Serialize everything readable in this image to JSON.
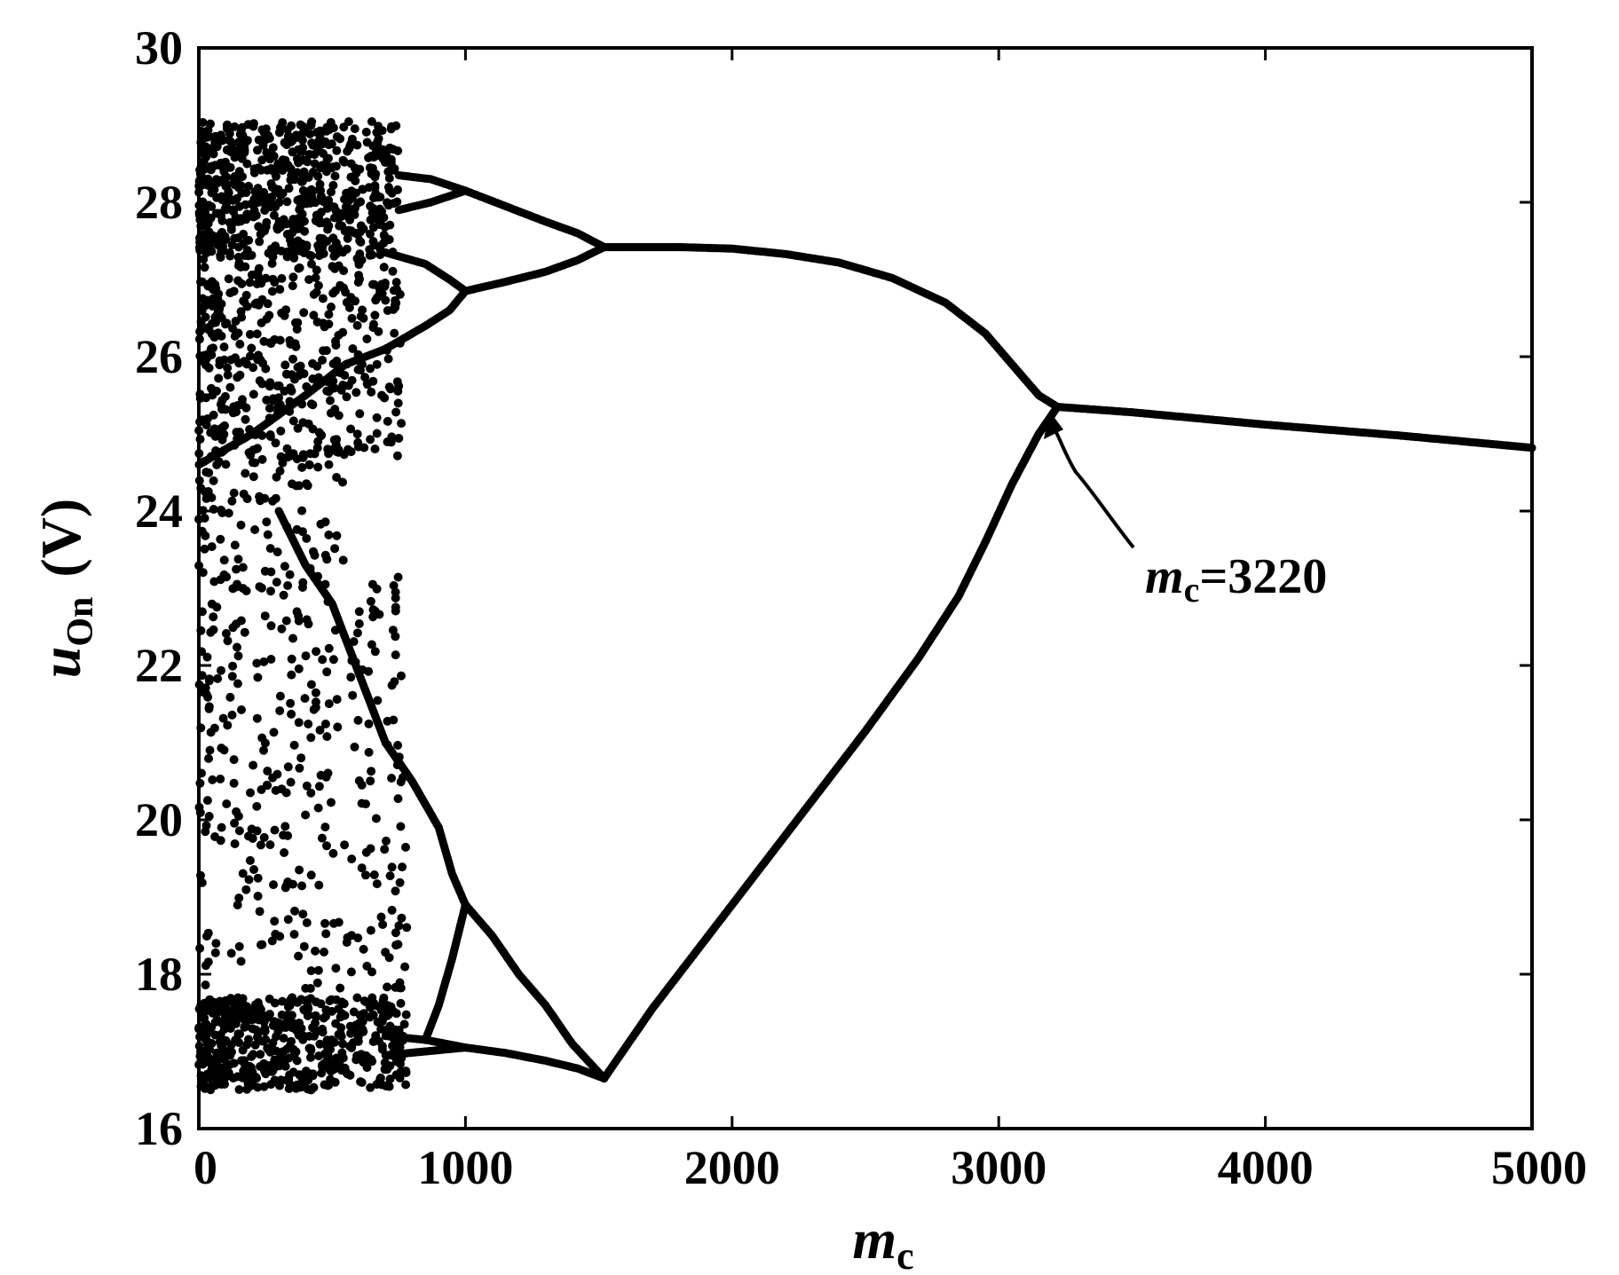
{
  "chart_data": {
    "type": "scatter",
    "title": "",
    "xlabel": {
      "main": "m",
      "sub": "c"
    },
    "ylabel": {
      "main": "u",
      "sub": "On",
      "unit": "(V)"
    },
    "xlim": [
      0,
      5000
    ],
    "ylim": [
      16,
      30
    ],
    "xticks": [
      0,
      1000,
      2000,
      3000,
      4000,
      5000
    ],
    "yticks": [
      16,
      18,
      20,
      22,
      24,
      26,
      28,
      30
    ],
    "xtick_labels": [
      "0",
      "1000",
      "2000",
      "3000",
      "4000",
      "5000"
    ],
    "ytick_labels": [
      "16",
      "18",
      "20",
      "22",
      "24",
      "26",
      "28",
      "30"
    ],
    "grid": false,
    "legend": "none",
    "marker_color": "#000000",
    "annotation": {
      "main": "m",
      "sub": "c",
      "rest": "=3220",
      "x": 3220,
      "y": 25.35
    },
    "branches": [
      {
        "name": "period-1",
        "points": [
          [
            3220,
            25.35
          ],
          [
            3500,
            25.28
          ],
          [
            4000,
            25.12
          ],
          [
            4500,
            24.98
          ],
          [
            5000,
            24.82
          ]
        ]
      },
      {
        "name": "period-2 upper",
        "points": [
          [
            1520,
            27.42
          ],
          [
            1800,
            27.42
          ],
          [
            2000,
            27.4
          ],
          [
            2200,
            27.33
          ],
          [
            2400,
            27.22
          ],
          [
            2600,
            27.02
          ],
          [
            2800,
            26.7
          ],
          [
            2950,
            26.3
          ],
          [
            3050,
            25.9
          ],
          [
            3150,
            25.5
          ],
          [
            3220,
            25.35
          ]
        ]
      },
      {
        "name": "period-2 lower",
        "points": [
          [
            1520,
            16.65
          ],
          [
            1700,
            17.55
          ],
          [
            1900,
            18.45
          ],
          [
            2100,
            19.35
          ],
          [
            2300,
            20.25
          ],
          [
            2500,
            21.15
          ],
          [
            2700,
            22.1
          ],
          [
            2850,
            22.9
          ],
          [
            2950,
            23.6
          ],
          [
            3050,
            24.35
          ],
          [
            3150,
            25.0
          ],
          [
            3220,
            25.35
          ]
        ]
      },
      {
        "name": "period-4 a",
        "points": [
          [
            1000,
            28.15
          ],
          [
            1150,
            27.95
          ],
          [
            1300,
            27.75
          ],
          [
            1420,
            27.6
          ],
          [
            1520,
            27.42
          ]
        ]
      },
      {
        "name": "period-4 b",
        "points": [
          [
            1000,
            26.85
          ],
          [
            1150,
            26.97
          ],
          [
            1300,
            27.1
          ],
          [
            1420,
            27.25
          ],
          [
            1520,
            27.42
          ]
        ]
      },
      {
        "name": "period-4 c",
        "points": [
          [
            1000,
            18.9
          ],
          [
            1100,
            18.5
          ],
          [
            1200,
            18.0
          ],
          [
            1300,
            17.6
          ],
          [
            1400,
            17.1
          ],
          [
            1520,
            16.65
          ]
        ]
      },
      {
        "name": "period-4 d",
        "points": [
          [
            1000,
            17.05
          ],
          [
            1150,
            16.98
          ],
          [
            1300,
            16.88
          ],
          [
            1420,
            16.78
          ],
          [
            1520,
            16.65
          ]
        ]
      },
      {
        "name": "period-8 a",
        "points": [
          [
            750,
            28.35
          ],
          [
            870,
            28.3
          ],
          [
            1000,
            28.15
          ]
        ]
      },
      {
        "name": "period-8 b",
        "points": [
          [
            750,
            27.9
          ],
          [
            870,
            28.0
          ],
          [
            1000,
            28.15
          ]
        ]
      },
      {
        "name": "period-8 c",
        "points": [
          [
            700,
            27.35
          ],
          [
            850,
            27.2
          ],
          [
            940,
            27.0
          ],
          [
            1000,
            26.85
          ]
        ]
      },
      {
        "name": "period-8 d",
        "points": [
          [
            700,
            26.1
          ],
          [
            850,
            26.4
          ],
          [
            940,
            26.6
          ],
          [
            1000,
            26.85
          ]
        ]
      },
      {
        "name": "period-8 e",
        "points": [
          [
            700,
            21.0
          ],
          [
            800,
            20.5
          ],
          [
            900,
            19.9
          ],
          [
            950,
            19.3
          ],
          [
            1000,
            18.9
          ]
        ]
      },
      {
        "name": "period-8 f",
        "points": [
          [
            850,
            17.15
          ],
          [
            900,
            17.6
          ],
          [
            950,
            18.2
          ],
          [
            1000,
            18.9
          ]
        ]
      },
      {
        "name": "period-8 g",
        "points": [
          [
            700,
            17.2
          ],
          [
            850,
            17.15
          ],
          [
            1000,
            17.05
          ]
        ]
      },
      {
        "name": "period-8 h",
        "points": [
          [
            700,
            16.95
          ],
          [
            850,
            17.0
          ],
          [
            1000,
            17.05
          ]
        ]
      },
      {
        "name": "band upper-edge",
        "points": [
          [
            0,
            24.6
          ],
          [
            200,
            25.0
          ],
          [
            400,
            25.5
          ],
          [
            550,
            25.9
          ],
          [
            700,
            26.1
          ]
        ]
      },
      {
        "name": "band lower-edge",
        "points": [
          [
            300,
            24.0
          ],
          [
            400,
            23.3
          ],
          [
            500,
            22.8
          ],
          [
            600,
            21.9
          ],
          [
            700,
            21.0
          ]
        ]
      }
    ],
    "chaotic_regions": [
      {
        "x": [
          0,
          750
        ],
        "y": [
          27.3,
          29.05
        ],
        "count": 620
      },
      {
        "x": [
          0,
          760
        ],
        "y": [
          24.7,
          27.3
        ],
        "count": 420
      },
      {
        "x": [
          0,
          550
        ],
        "y": [
          23.2,
          24.7
        ],
        "count": 90
      },
      {
        "x": [
          0,
          780
        ],
        "y": [
          17.8,
          23.2
        ],
        "count": 330
      },
      {
        "x": [
          0,
          780
        ],
        "y": [
          16.5,
          17.7
        ],
        "count": 520
      }
    ]
  }
}
